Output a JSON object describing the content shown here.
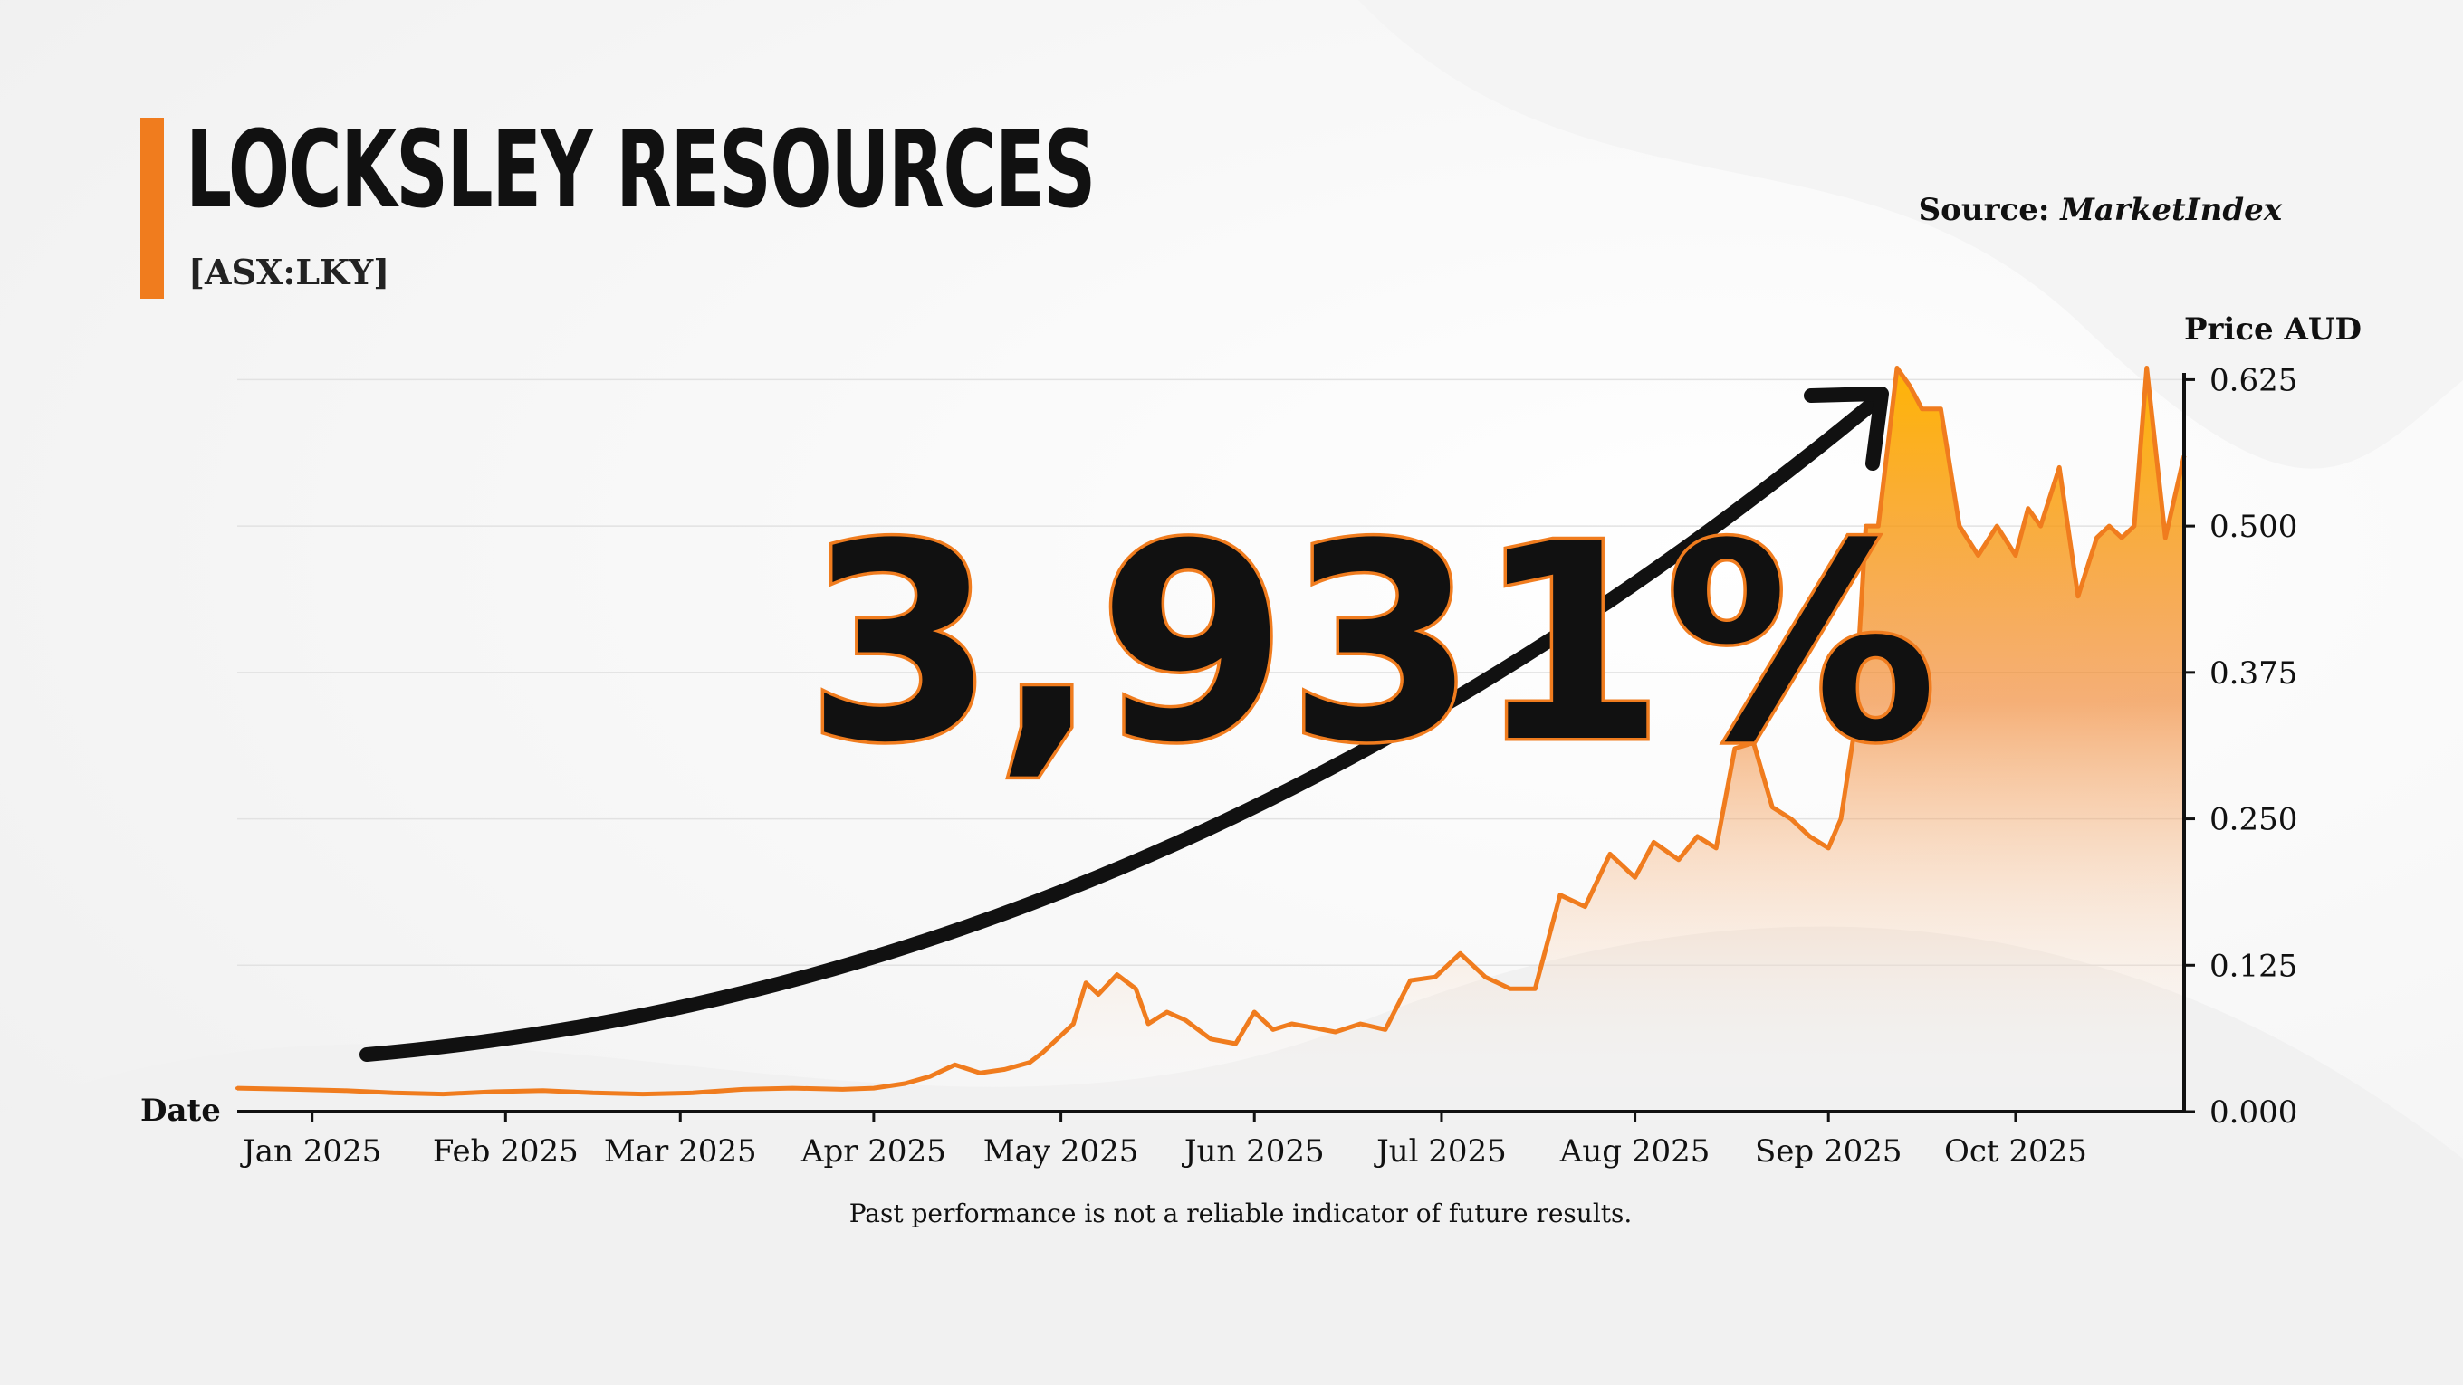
{
  "header": {
    "title": "LOCKSLEY RESOURCES",
    "ticker": "[ASX:LKY]",
    "source_prefix": "Source:",
    "source_name": "MarketIndex"
  },
  "callout": {
    "text": "3,931%"
  },
  "footer": {
    "disclaimer": "Past performance is not a reliable indicator of future results."
  },
  "colors": {
    "accent": "#f07c1e",
    "fill_top": "#ffb300",
    "text": "#111111",
    "grid": "#e2e2e2"
  },
  "chart_data": {
    "type": "area",
    "title": "",
    "xlabel": "Date",
    "ylabel": "Price AUD",
    "y_axis_side": "right",
    "ylim": [
      0,
      0.64
    ],
    "yticks": [
      0,
      0.125,
      0.25,
      0.375,
      0.5,
      0.625
    ],
    "ytick_labels": [
      "0.000",
      "0.125",
      "0.250",
      "0.375",
      "0.500",
      "0.625"
    ],
    "xlim": [
      "2024-12-20",
      "2025-10-28"
    ],
    "xticks": [
      "2025-01-01",
      "2025-02-01",
      "2025-03-01",
      "2025-04-01",
      "2025-05-01",
      "2025-06-01",
      "2025-07-01",
      "2025-08-01",
      "2025-09-01",
      "2025-10-01"
    ],
    "xtick_labels": [
      "Jan 2025",
      "Feb 2025",
      "Mar 2025",
      "Apr 2025",
      "May 2025",
      "Jun 2025",
      "Jul 2025",
      "Aug 2025",
      "Sep 2025",
      "Oct 2025"
    ],
    "grid": "horizontal",
    "series": [
      {
        "x": [
          "2024-12-20",
          "2024-12-29",
          "2025-01-06",
          "2025-01-14",
          "2025-01-22",
          "2025-01-30",
          "2025-02-07",
          "2025-02-15",
          "2025-02-23",
          "2025-03-03",
          "2025-03-11",
          "2025-03-19",
          "2025-03-27",
          "2025-04-01",
          "2025-04-06",
          "2025-04-10",
          "2025-04-14",
          "2025-04-18",
          "2025-04-22",
          "2025-04-26",
          "2025-04-28",
          "2025-05-01",
          "2025-05-03",
          "2025-05-05",
          "2025-05-07",
          "2025-05-10",
          "2025-05-13",
          "2025-05-15",
          "2025-05-18",
          "2025-05-21",
          "2025-05-25",
          "2025-05-29",
          "2025-06-01",
          "2025-06-04",
          "2025-06-07",
          "2025-06-10",
          "2025-06-14",
          "2025-06-18",
          "2025-06-22",
          "2025-06-26",
          "2025-06-30",
          "2025-07-04",
          "2025-07-08",
          "2025-07-12",
          "2025-07-16",
          "2025-07-20",
          "2025-07-24",
          "2025-07-28",
          "2025-08-01",
          "2025-08-04",
          "2025-08-08",
          "2025-08-11",
          "2025-08-14",
          "2025-08-17",
          "2025-08-20",
          "2025-08-23",
          "2025-08-26",
          "2025-08-29",
          "2025-09-01",
          "2025-09-03",
          "2025-09-05",
          "2025-09-07",
          "2025-09-09",
          "2025-09-12",
          "2025-09-14",
          "2025-09-16",
          "2025-09-19",
          "2025-09-22",
          "2025-09-25",
          "2025-09-28",
          "2025-10-01",
          "2025-10-03",
          "2025-10-05",
          "2025-10-08",
          "2025-10-11",
          "2025-10-14",
          "2025-10-16",
          "2025-10-18",
          "2025-10-20",
          "2025-10-22",
          "2025-10-25",
          "2025-10-28"
        ],
        "y": [
          0.02,
          0.019,
          0.018,
          0.016,
          0.015,
          0.017,
          0.018,
          0.016,
          0.015,
          0.016,
          0.019,
          0.02,
          0.019,
          0.02,
          0.024,
          0.03,
          0.04,
          0.033,
          0.036,
          0.042,
          0.05,
          0.065,
          0.075,
          0.11,
          0.1,
          0.117,
          0.105,
          0.075,
          0.085,
          0.078,
          0.062,
          0.058,
          0.085,
          0.07,
          0.075,
          0.072,
          0.068,
          0.075,
          0.07,
          0.112,
          0.115,
          0.135,
          0.115,
          0.105,
          0.105,
          0.185,
          0.175,
          0.22,
          0.2,
          0.23,
          0.215,
          0.235,
          0.225,
          0.31,
          0.315,
          0.26,
          0.25,
          0.235,
          0.225,
          0.25,
          0.32,
          0.5,
          0.5,
          0.635,
          0.62,
          0.6,
          0.6,
          0.5,
          0.475,
          0.5,
          0.475,
          0.515,
          0.5,
          0.55,
          0.44,
          0.49,
          0.5,
          0.49,
          0.5,
          0.635,
          0.49,
          0.56
        ]
      }
    ]
  }
}
